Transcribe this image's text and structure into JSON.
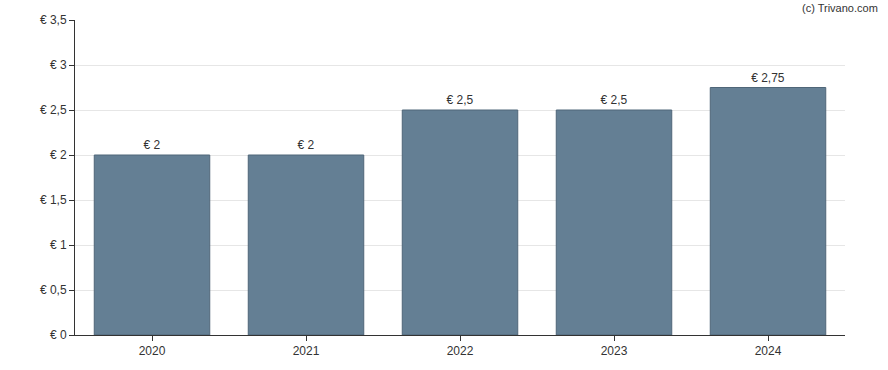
{
  "chart_data": {
    "type": "bar",
    "categories": [
      "2020",
      "2021",
      "2022",
      "2023",
      "2024"
    ],
    "values": [
      2,
      2,
      2.5,
      2.5,
      2.75
    ],
    "value_labels": [
      "€ 2",
      "€ 2",
      "€ 2,5",
      "€ 2,5",
      "€ 2,75"
    ],
    "data_labels": true,
    "color": "#647f94",
    "ylim": [
      0,
      3.5
    ],
    "yticks": [
      {
        "value": 0,
        "label": "€ 0"
      },
      {
        "value": 0.5,
        "label": "€ 0,5"
      },
      {
        "value": 1,
        "label": "€ 1"
      },
      {
        "value": 1.5,
        "label": "€ 1,5"
      },
      {
        "value": 2,
        "label": "€ 2"
      },
      {
        "value": 2.5,
        "label": "€ 2,5"
      },
      {
        "value": 3,
        "label": "€ 3"
      },
      {
        "value": 3.5,
        "label": "€ 3,5"
      }
    ],
    "grid": true,
    "annotations": [
      "(c) Trivano.com"
    ]
  }
}
